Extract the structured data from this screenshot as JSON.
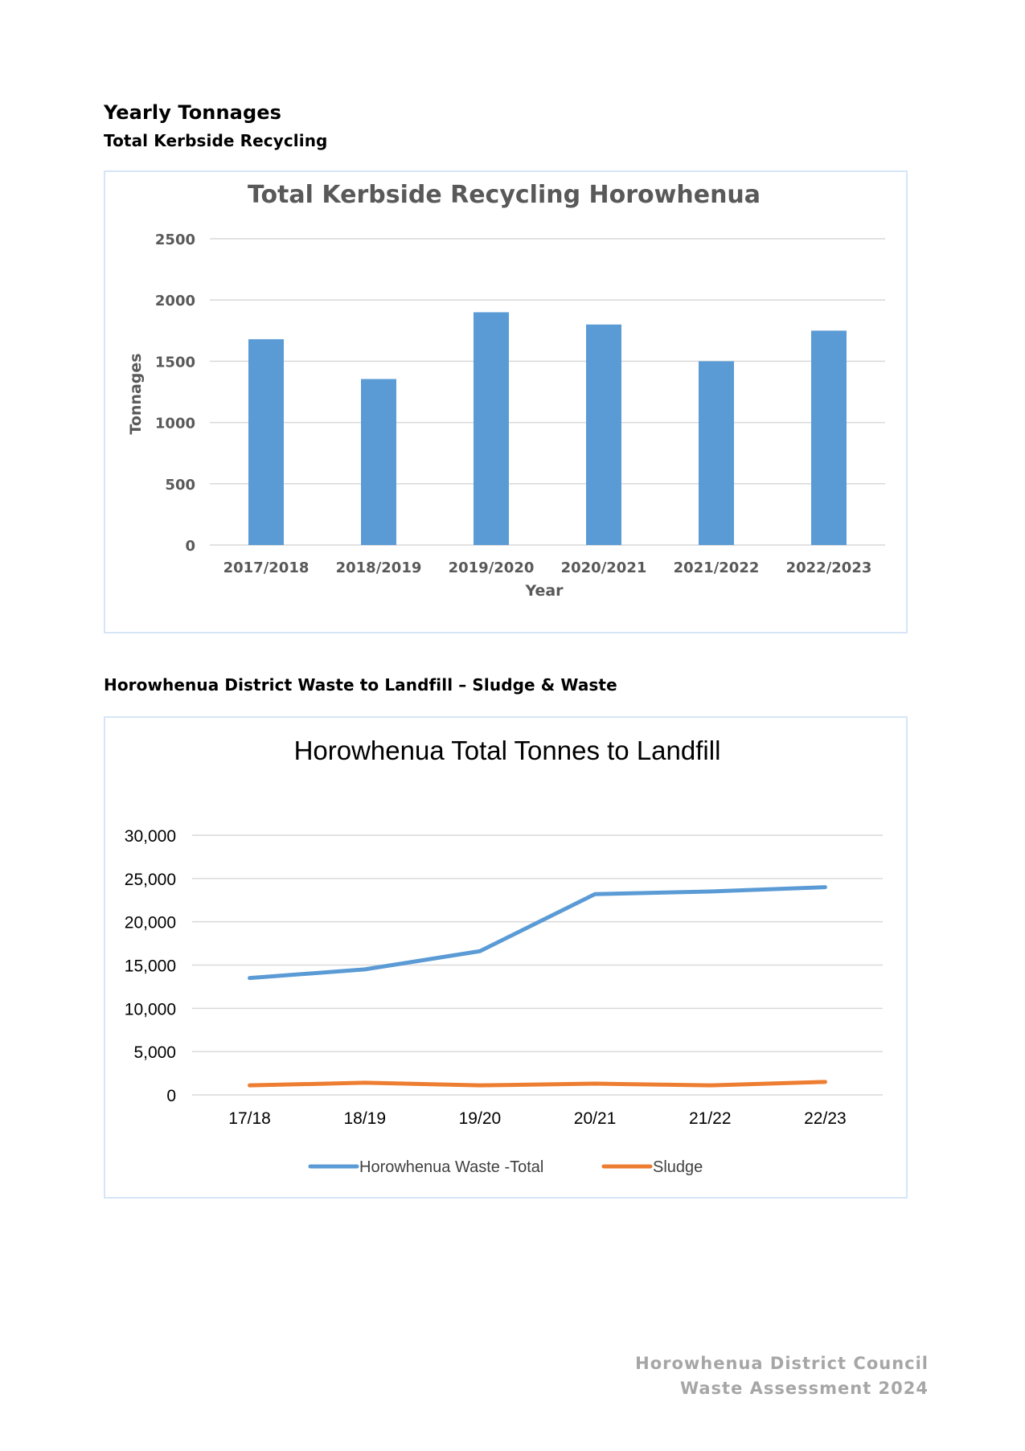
{
  "headings": {
    "main": "Yearly Tonnages",
    "section1": "Total Kerbside Recycling",
    "section2": "Horowhenua District Waste to Landfill – Sludge & Waste"
  },
  "footer": {
    "line1": "Horowhenua District Council",
    "line2": "Waste Assessment 2024"
  },
  "chart_data": [
    {
      "type": "bar",
      "title": "Total Kerbside Recycling Horowhenua",
      "xlabel": "Year",
      "ylabel": "Tonnages",
      "categories": [
        "2017/2018",
        "2018/2019",
        "2019/2020",
        "2020/2021",
        "2021/2022",
        "2022/2023"
      ],
      "values": [
        1680,
        1355,
        1900,
        1800,
        1500,
        1750
      ],
      "yticks": [
        "0",
        "500",
        "1000",
        "1500",
        "2000",
        "2500"
      ],
      "ylim": [
        0,
        2500
      ],
      "grid": true,
      "color": "#5b9bd5"
    },
    {
      "type": "line",
      "title": "Horowhenua Total Tonnes to Landfill",
      "xlabel": "",
      "ylabel": "",
      "categories": [
        "17/18",
        "18/19",
        "19/20",
        "20/21",
        "21/22",
        "22/23"
      ],
      "yticks": [
        "0",
        "5,000",
        "10,000",
        "15,000",
        "20,000",
        "25,000",
        "30,000"
      ],
      "ylim": [
        0,
        30000
      ],
      "grid": true,
      "legend": "bottom",
      "series": [
        {
          "name": "Horowhenua Waste -Total",
          "color": "#5b9bd5",
          "values": [
            13500,
            14500,
            16600,
            23200,
            23500,
            24000
          ]
        },
        {
          "name": "Sludge",
          "color": "#ed7d31",
          "values": [
            1100,
            1400,
            1100,
            1300,
            1100,
            1500
          ]
        }
      ]
    }
  ]
}
